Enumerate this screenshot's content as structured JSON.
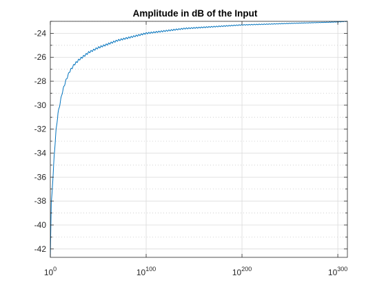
{
  "chart_data": {
    "type": "line",
    "title": "Amplitude in dB of the Input",
    "xlabel": "",
    "ylabel": "",
    "x_scale": "log",
    "x_base": 10,
    "xlim_exponent": [
      0,
      310
    ],
    "ylim": [
      -42.7,
      -23
    ],
    "x_ticks": [
      {
        "base": "10",
        "exp": "0",
        "value_exponent": 0
      },
      {
        "base": "10",
        "exp": "100",
        "value_exponent": 100
      },
      {
        "base": "10",
        "exp": "200",
        "value_exponent": 200
      },
      {
        "base": "10",
        "exp": "300",
        "value_exponent": 300
      }
    ],
    "y_ticks": [
      {
        "value": -42,
        "label": "-42"
      },
      {
        "value": -40,
        "label": "-40"
      },
      {
        "value": -38,
        "label": "-38"
      },
      {
        "value": -36,
        "label": "-36"
      },
      {
        "value": -34,
        "label": "-34"
      },
      {
        "value": -32,
        "label": "-32"
      },
      {
        "value": -30,
        "label": "-30"
      },
      {
        "value": -28,
        "label": "-28"
      },
      {
        "value": -26,
        "label": "-26"
      },
      {
        "value": -24,
        "label": "-24"
      }
    ],
    "y_minor_step": 1,
    "grid": true,
    "minor_grid": true,
    "series": [
      {
        "color": "#0072BD",
        "x_exponent": [
          0,
          1,
          2,
          3,
          4,
          5,
          6,
          7,
          8,
          10,
          12,
          14,
          16,
          18,
          20,
          25,
          30,
          35,
          40,
          45,
          50,
          60,
          70,
          80,
          90,
          100,
          120,
          140,
          160,
          180,
          200,
          220,
          240,
          260,
          280,
          300,
          310
        ],
        "y": [
          -42.7,
          -38.2,
          -37.0,
          -35.8,
          -34.2,
          -33.2,
          -32.1,
          -31.4,
          -30.7,
          -29.9,
          -29.1,
          -28.5,
          -28.0,
          -27.6,
          -27.2,
          -26.6,
          -26.2,
          -25.9,
          -25.6,
          -25.4,
          -25.2,
          -24.9,
          -24.6,
          -24.4,
          -24.2,
          -24.0,
          -23.8,
          -23.6,
          -23.5,
          -23.4,
          -23.3,
          -23.25,
          -23.2,
          -23.15,
          -23.1,
          -23.05,
          -23.0
        ]
      }
    ]
  }
}
